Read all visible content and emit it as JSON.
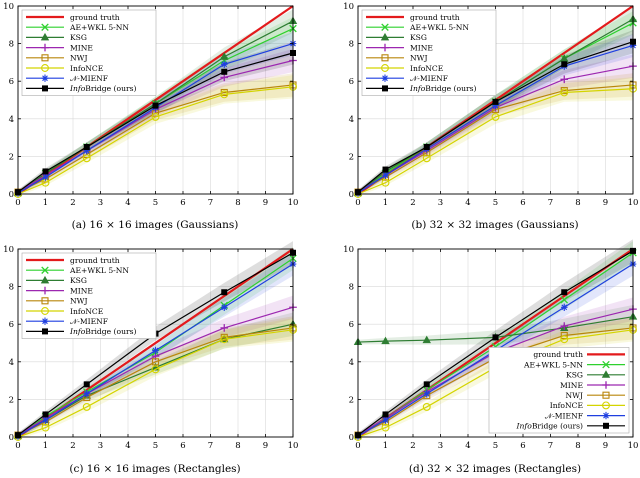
{
  "chart_data": [
    {
      "type": "line",
      "panel": "a",
      "caption": "(a) 16 × 16 images (Gaussians)",
      "xlim": [
        0,
        10
      ],
      "ylim": [
        0,
        10
      ],
      "xticks": [
        "0",
        "1",
        "2",
        "3",
        "4",
        "5",
        "6",
        "7",
        "8",
        "9",
        "10"
      ],
      "yticks": [
        "0",
        "2",
        "4",
        "6",
        "8",
        "10"
      ],
      "grid": true,
      "legend_position": "top-left",
      "series": [
        {
          "name": "ground truth",
          "color": "#e31a1c",
          "marker": "none",
          "x": [
            0,
            10
          ],
          "y": [
            0,
            10
          ]
        },
        {
          "name": "AE+WKL 5-NN",
          "color": "#2ed12e",
          "marker": "x",
          "x": [
            0,
            1,
            2.5,
            5,
            7.5,
            10
          ],
          "y": [
            0.05,
            1.1,
            2.5,
            4.8,
            7.1,
            8.8
          ]
        },
        {
          "name": "KSG",
          "color": "#2e7d32",
          "marker": "triangle",
          "x": [
            0,
            1,
            2.5,
            5,
            7.5,
            10
          ],
          "y": [
            0.05,
            1.1,
            2.5,
            4.8,
            7.3,
            9.2
          ]
        },
        {
          "name": "MINE",
          "color": "#9c27b0",
          "marker": "plus",
          "x": [
            0,
            1,
            2.5,
            5,
            7.5,
            10
          ],
          "y": [
            0.1,
            1.0,
            2.3,
            4.5,
            6.2,
            7.1
          ]
        },
        {
          "name": "NWJ",
          "color": "#b8860b",
          "marker": "square-open",
          "x": [
            0,
            1,
            2.5,
            5,
            7.5,
            10
          ],
          "y": [
            0.1,
            0.8,
            2.1,
            4.3,
            5.4,
            5.8
          ]
        },
        {
          "name": "InfoNCE",
          "color": "#d4d400",
          "marker": "circle-open",
          "x": [
            0,
            1,
            2.5,
            5,
            7.5,
            10
          ],
          "y": [
            0.0,
            0.6,
            1.9,
            4.1,
            5.3,
            5.7
          ]
        },
        {
          "name": "𝒩-MIENF",
          "color": "#1f3fe0",
          "marker": "star",
          "x": [
            0,
            1,
            2.5,
            5,
            7.5,
            10
          ],
          "y": [
            0.05,
            0.9,
            2.3,
            4.6,
            6.9,
            8.0
          ]
        },
        {
          "name": "InfoBridge (ours)",
          "color": "#000000",
          "marker": "square",
          "x": [
            0,
            1,
            2.5,
            5,
            7.5,
            10
          ],
          "y": [
            0.1,
            1.2,
            2.5,
            4.7,
            6.5,
            7.5
          ]
        }
      ]
    },
    {
      "type": "line",
      "panel": "b",
      "caption": "(b) 32 × 32 images (Gaussians)",
      "xlim": [
        0,
        10
      ],
      "ylim": [
        0,
        10
      ],
      "xticks": [
        "0",
        "1",
        "2",
        "3",
        "4",
        "5",
        "6",
        "7",
        "8",
        "9",
        "10"
      ],
      "yticks": [
        "0",
        "2",
        "4",
        "6",
        "8",
        "10"
      ],
      "grid": true,
      "legend_position": "top-left",
      "series": [
        {
          "name": "ground truth",
          "color": "#e31a1c",
          "marker": "none",
          "x": [
            0,
            10
          ],
          "y": [
            0,
            10
          ]
        },
        {
          "name": "AE+WKL 5-NN",
          "color": "#2ed12e",
          "marker": "x",
          "x": [
            0,
            1,
            2.5,
            5,
            7.5,
            10
          ],
          "y": [
            0.05,
            1.1,
            2.5,
            4.9,
            7.2,
            9.1
          ]
        },
        {
          "name": "KSG",
          "color": "#2e7d32",
          "marker": "triangle",
          "x": [
            0,
            1,
            2.5,
            5,
            7.5,
            10
          ],
          "y": [
            0.05,
            1.2,
            2.5,
            4.9,
            7.2,
            9.3
          ]
        },
        {
          "name": "MINE",
          "color": "#9c27b0",
          "marker": "plus",
          "x": [
            0,
            1,
            2.5,
            5,
            7.5,
            10
          ],
          "y": [
            0.1,
            1.0,
            2.3,
            4.6,
            6.1,
            6.8
          ]
        },
        {
          "name": "NWJ",
          "color": "#b8860b",
          "marker": "square-open",
          "x": [
            0,
            1,
            2.5,
            5,
            7.5,
            10
          ],
          "y": [
            0.1,
            0.9,
            2.2,
            4.5,
            5.5,
            5.8
          ]
        },
        {
          "name": "InfoNCE",
          "color": "#d4d400",
          "marker": "circle-open",
          "x": [
            0,
            1,
            2.5,
            5,
            7.5,
            10
          ],
          "y": [
            0.0,
            0.6,
            1.9,
            4.1,
            5.4,
            5.6
          ]
        },
        {
          "name": "𝒩-MIENF",
          "color": "#1f3fe0",
          "marker": "star",
          "x": [
            0,
            1,
            2.5,
            5,
            7.5,
            10
          ],
          "y": [
            0.05,
            1.0,
            2.4,
            4.7,
            6.8,
            7.9
          ]
        },
        {
          "name": "InfoBridge (ours)",
          "color": "#000000",
          "marker": "square",
          "x": [
            0,
            1,
            2.5,
            5,
            7.5,
            10
          ],
          "y": [
            0.1,
            1.3,
            2.5,
            4.9,
            6.9,
            8.1
          ]
        }
      ]
    },
    {
      "type": "line",
      "panel": "c",
      "caption": "(c) 16 × 16 images (Rectangles)",
      "xlim": [
        0,
        10
      ],
      "ylim": [
        0,
        10
      ],
      "xticks": [
        "0",
        "1",
        "2",
        "3",
        "4",
        "5",
        "6",
        "7",
        "8",
        "9",
        "10"
      ],
      "yticks": [
        "0",
        "2",
        "4",
        "6",
        "8",
        "10"
      ],
      "grid": true,
      "legend_position": "top-left",
      "series": [
        {
          "name": "ground truth",
          "color": "#e31a1c",
          "marker": "none",
          "x": [
            0,
            10
          ],
          "y": [
            0,
            10
          ]
        },
        {
          "name": "AE+WKL 5-NN",
          "color": "#2ed12e",
          "marker": "x",
          "x": [
            0,
            1,
            2.5,
            5,
            7.5,
            10
          ],
          "y": [
            0.05,
            1.1,
            2.4,
            4.5,
            7.0,
            9.5
          ]
        },
        {
          "name": "KSG",
          "color": "#2e7d32",
          "marker": "triangle",
          "x": [
            0,
            1,
            2.5,
            5,
            7.5,
            10
          ],
          "y": [
            0.05,
            0.9,
            2.2,
            3.7,
            5.2,
            6.0
          ]
        },
        {
          "name": "MINE",
          "color": "#9c27b0",
          "marker": "plus",
          "x": [
            0,
            1,
            2.5,
            5,
            7.5,
            10
          ],
          "y": [
            0.1,
            1.0,
            2.3,
            4.3,
            5.8,
            6.9
          ]
        },
        {
          "name": "NWJ",
          "color": "#b8860b",
          "marker": "square-open",
          "x": [
            0,
            1,
            2.5,
            5,
            7.5,
            10
          ],
          "y": [
            0.1,
            0.8,
            2.1,
            4.0,
            5.3,
            5.8
          ]
        },
        {
          "name": "InfoNCE",
          "color": "#d4d400",
          "marker": "circle-open",
          "x": [
            0,
            1,
            2.5,
            5,
            7.5,
            10
          ],
          "y": [
            0.0,
            0.5,
            1.6,
            3.6,
            5.2,
            5.7
          ]
        },
        {
          "name": "𝒩-MIENF",
          "color": "#1f3fe0",
          "marker": "star",
          "x": [
            0,
            1,
            2.5,
            5,
            7.5,
            10
          ],
          "y": [
            0.05,
            0.9,
            2.3,
            4.6,
            6.9,
            9.2
          ]
        },
        {
          "name": "InfoBridge (ours)",
          "color": "#000000",
          "marker": "square",
          "x": [
            0,
            1,
            2.5,
            5,
            7.5,
            10
          ],
          "y": [
            0.1,
            1.2,
            2.8,
            5.5,
            7.7,
            9.8
          ]
        }
      ]
    },
    {
      "type": "line",
      "panel": "d",
      "caption": "(d) 32 × 32 images (Rectangles)",
      "xlim": [
        0,
        10
      ],
      "ylim": [
        0,
        10
      ],
      "xticks": [
        "0",
        "1",
        "2",
        "3",
        "4",
        "5",
        "6",
        "7",
        "8",
        "9",
        "10"
      ],
      "yticks": [
        "0",
        "2",
        "4",
        "6",
        "8",
        "10"
      ],
      "grid": true,
      "legend_position": "bottom-right",
      "series": [
        {
          "name": "ground truth",
          "color": "#e31a1c",
          "marker": "none",
          "x": [
            0,
            10
          ],
          "y": [
            0,
            10
          ]
        },
        {
          "name": "AE+WKL 5-NN",
          "color": "#2ed12e",
          "marker": "x",
          "x": [
            0,
            1,
            2.5,
            5,
            7.5,
            10
          ],
          "y": [
            0.05,
            1.0,
            2.5,
            4.8,
            7.3,
            9.8
          ]
        },
        {
          "name": "KSG",
          "color": "#2e7d32",
          "marker": "triangle",
          "x": [
            0,
            1,
            2.5,
            5,
            7.5,
            10
          ],
          "y": [
            5.05,
            5.1,
            5.15,
            5.3,
            5.8,
            6.4
          ]
        },
        {
          "name": "MINE",
          "color": "#9c27b0",
          "marker": "plus",
          "x": [
            0,
            1,
            2.5,
            5,
            7.5,
            10
          ],
          "y": [
            0.1,
            1.0,
            2.4,
            4.5,
            5.9,
            6.8
          ]
        },
        {
          "name": "NWJ",
          "color": "#b8860b",
          "marker": "square-open",
          "x": [
            0,
            1,
            2.5,
            5,
            7.5,
            10
          ],
          "y": [
            0.1,
            0.8,
            2.2,
            4.2,
            5.4,
            5.8
          ]
        },
        {
          "name": "InfoNCE",
          "color": "#d4d400",
          "marker": "circle-open",
          "x": [
            0,
            1,
            2.5,
            5,
            7.5,
            10
          ],
          "y": [
            0.0,
            0.5,
            1.6,
            3.7,
            5.2,
            5.7
          ]
        },
        {
          "name": "𝒩-MIENF",
          "color": "#1f3fe0",
          "marker": "star",
          "x": [
            0,
            1,
            2.5,
            5,
            7.5,
            10
          ],
          "y": [
            0.05,
            0.9,
            2.3,
            4.6,
            6.9,
            9.2
          ]
        },
        {
          "name": "InfoBridge (ours)",
          "color": "#000000",
          "marker": "square",
          "x": [
            0,
            1,
            2.5,
            5,
            7.5,
            10
          ],
          "y": [
            0.1,
            1.2,
            2.8,
            5.3,
            7.7,
            9.9
          ]
        }
      ]
    }
  ]
}
